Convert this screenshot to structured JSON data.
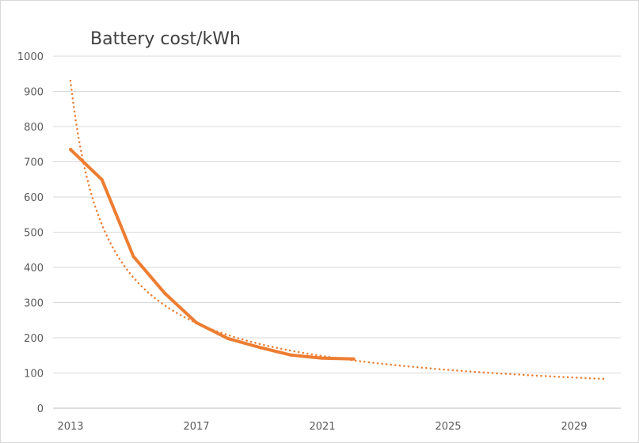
{
  "chart_data": {
    "type": "line",
    "title": "Battery cost/kWh",
    "xlabel": "",
    "ylabel": "",
    "xlim": [
      2013,
      2030
    ],
    "ylim": [
      0,
      1000
    ],
    "grid": true,
    "x_ticks": [
      "2013",
      "2017",
      "2021",
      "2025",
      "2029"
    ],
    "y_ticks": [
      "0",
      "100",
      "200",
      "300",
      "400",
      "500",
      "600",
      "700",
      "800",
      "900",
      "1000"
    ],
    "series": [
      {
        "x": [
          2013,
          2014,
          2015,
          2016,
          2017,
          2018,
          2019,
          2020,
          2021,
          2022
        ],
        "values": [
          735,
          649,
          431,
          326,
          243,
          198,
          173,
          151,
          142,
          140
        ],
        "style": "solid",
        "color": "#ED7D31"
      }
    ],
    "trendline": {
      "kind": "power",
      "style": "dotted",
      "color": "#ED7D31",
      "x_range": [
        2013,
        2030
      ],
      "start_value": 930,
      "end_value": 83
    }
  }
}
